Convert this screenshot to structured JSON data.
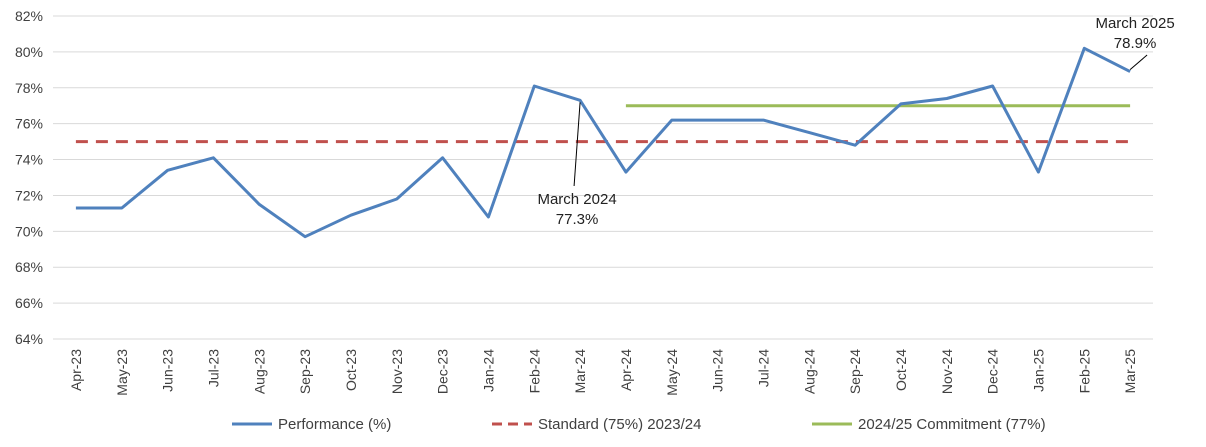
{
  "chart_data": {
    "type": "line",
    "title": "",
    "xlabel": "",
    "ylabel": "",
    "ylim": [
      64,
      82
    ],
    "ytick_step": 2,
    "ytick_suffix": "%",
    "grid": "horizontal",
    "legend_position": "bottom",
    "categories": [
      "Apr-23",
      "May-23",
      "Jun-23",
      "Jul-23",
      "Aug-23",
      "Sep-23",
      "Oct-23",
      "Nov-23",
      "Dec-23",
      "Jan-24",
      "Feb-24",
      "Mar-24",
      "Apr-24",
      "May-24",
      "Jun-24",
      "Jul-24",
      "Aug-24",
      "Sep-24",
      "Oct-24",
      "Nov-24",
      "Dec-24",
      "Jan-25",
      "Feb-25",
      "Mar-25"
    ],
    "series": [
      {
        "name": "Performance (%)",
        "color": "#4f81bd",
        "style": "solid",
        "values": [
          71.3,
          71.3,
          73.4,
          74.1,
          71.5,
          69.7,
          70.9,
          71.8,
          74.1,
          70.8,
          78.1,
          77.3,
          73.3,
          76.2,
          76.2,
          76.2,
          75.5,
          74.8,
          77.1,
          77.4,
          78.1,
          73.3,
          80.2,
          78.9
        ]
      },
      {
        "name": "Standard (75%) 2023/24",
        "color": "#c0504d",
        "style": "dashed",
        "values": [
          75,
          75,
          75,
          75,
          75,
          75,
          75,
          75,
          75,
          75,
          75,
          75,
          75,
          75,
          75,
          75,
          75,
          75,
          75,
          75,
          75,
          75,
          75,
          75
        ]
      },
      {
        "name": "2024/25 Commitment (77%)",
        "color": "#9bbb59",
        "style": "solid",
        "values": [
          null,
          null,
          null,
          null,
          null,
          null,
          null,
          null,
          null,
          null,
          null,
          null,
          77,
          77,
          77,
          77,
          77,
          77,
          77,
          77,
          77,
          77,
          77,
          77
        ]
      }
    ],
    "annotations": [
      {
        "index": 11,
        "series": 0,
        "lines": [
          "March 2024",
          "77.3%"
        ],
        "placement": "below"
      },
      {
        "index": 23,
        "series": 0,
        "lines": [
          "March 2025",
          "78.9%"
        ],
        "placement": "above"
      }
    ]
  }
}
